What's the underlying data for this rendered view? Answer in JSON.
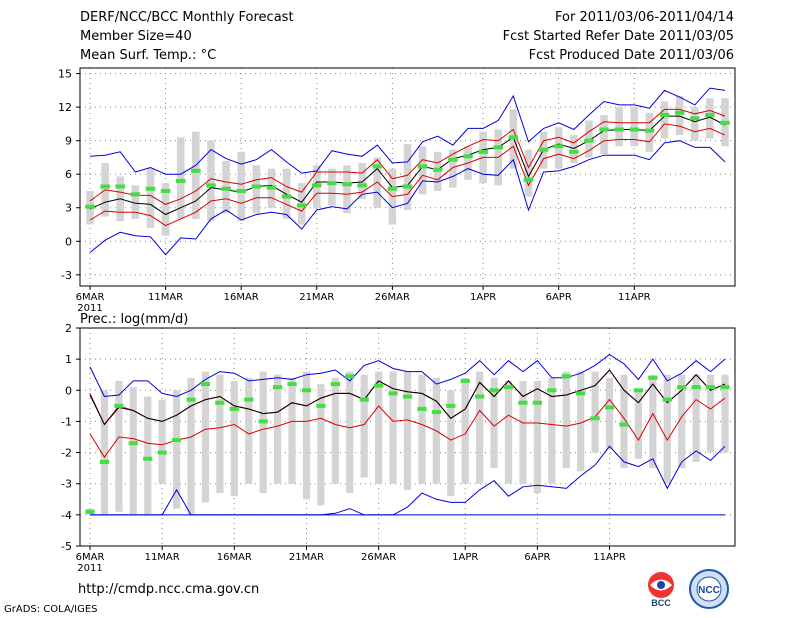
{
  "header": {
    "title": "DERF/NCC/BCC Monthly Forecast",
    "member_size": "Member Size=40",
    "variable": "Mean Surf. Temp.: °C",
    "period": "For 2011/03/06-2011/04/14",
    "started": "Fcst Started Refer Date 2011/03/05",
    "produced": "Fcst Produced Date 2011/03/06"
  },
  "footer": {
    "url": "http://cmdp.ncc.cma.gov.cn",
    "credit": "GrADS: COLA/IGES"
  },
  "logos": {
    "bcc": "BCC",
    "ncc": "NCC"
  },
  "colors": {
    "box": "#d4d4d4",
    "mean": "#000000",
    "bound": "#0000dd",
    "spread": "#dd0000",
    "median": "#44dd44",
    "grid": "#888888"
  },
  "chart_data": [
    {
      "type": "line",
      "title": "Mean Surf. Temp.: °C",
      "x_labels": [
        "6MAR",
        "11MAR",
        "16MAR",
        "21MAR",
        "26MAR",
        "1APR",
        "6APR",
        "11APR"
      ],
      "x_label_days": [
        0,
        5,
        10,
        15,
        20,
        26,
        31,
        36
      ],
      "year_label": "2011",
      "ylim": [
        -4,
        15.5
      ],
      "yticks": [
        -3,
        0,
        3,
        6,
        9,
        12,
        15
      ],
      "series": [
        {
          "name": "max",
          "values": [
            7.6,
            7.7,
            8.0,
            6.2,
            6.6,
            6.0,
            6.0,
            6.8,
            8.2,
            7.4,
            6.9,
            7.3,
            8.2,
            7.1,
            6.1,
            6.3,
            8.1,
            7.8,
            7.6,
            8.6,
            7.0,
            7.1,
            8.9,
            9.4,
            8.6,
            10.1,
            10.1,
            10.8,
            13.0,
            8.9,
            10.1,
            10.6,
            10.0,
            11.3,
            12.5,
            12.2,
            12.2,
            11.9,
            13.5,
            12.9,
            12.2,
            13.7,
            13.5
          ]
        },
        {
          "name": "upper",
          "values": [
            3.6,
            4.6,
            4.4,
            4.1,
            4.1,
            3.3,
            3.8,
            4.5,
            5.6,
            5.3,
            5.1,
            5.5,
            5.7,
            4.9,
            4.4,
            6.2,
            6.2,
            6.2,
            6.1,
            7.3,
            5.6,
            5.9,
            7.3,
            7.0,
            7.8,
            8.5,
            9.1,
            9.0,
            10.0,
            6.6,
            9.0,
            9.3,
            8.8,
            9.8,
            10.7,
            10.6,
            10.6,
            10.6,
            11.8,
            11.8,
            11.4,
            11.7,
            11.2
          ]
        },
        {
          "name": "mean",
          "values": [
            2.9,
            3.5,
            3.8,
            3.4,
            3.3,
            2.4,
            3.0,
            3.6,
            4.8,
            4.6,
            4.4,
            4.9,
            5.0,
            4.2,
            3.5,
            5.3,
            5.3,
            5.2,
            5.3,
            6.5,
            4.8,
            5.0,
            6.7,
            6.4,
            7.4,
            7.7,
            8.2,
            8.4,
            9.3,
            5.8,
            8.2,
            8.7,
            8.3,
            9.0,
            9.9,
            10.0,
            10.0,
            9.9,
            11.2,
            11.2,
            10.7,
            11.1,
            10.4
          ]
        },
        {
          "name": "lower",
          "values": [
            1.9,
            2.7,
            2.6,
            2.6,
            2.3,
            1.4,
            2.0,
            2.6,
            3.6,
            3.8,
            3.4,
            3.9,
            3.9,
            3.3,
            2.7,
            4.3,
            4.3,
            4.2,
            4.4,
            5.3,
            4.0,
            4.2,
            5.9,
            5.5,
            6.6,
            7.0,
            7.5,
            7.5,
            8.5,
            5.0,
            7.4,
            7.8,
            7.4,
            8.1,
            9.0,
            9.1,
            9.1,
            8.9,
            10.5,
            10.3,
            9.8,
            10.1,
            9.5
          ]
        },
        {
          "name": "min",
          "values": [
            -1.0,
            0.1,
            0.8,
            0.5,
            0.4,
            -1.2,
            0.3,
            0.2,
            2.0,
            2.8,
            1.9,
            2.4,
            2.6,
            2.4,
            1.1,
            2.8,
            3.1,
            2.9,
            4.2,
            4.4,
            3.0,
            3.4,
            5.4,
            5.3,
            5.8,
            6.5,
            6.0,
            5.9,
            7.3,
            2.8,
            6.2,
            6.3,
            6.7,
            7.3,
            7.7,
            7.7,
            7.7,
            7.3,
            8.8,
            9.0,
            8.4,
            8.4,
            7.1
          ]
        },
        {
          "name": "median",
          "values": [
            3.1,
            4.9,
            4.9,
            4.2,
            4.7,
            4.5,
            5.4,
            6.3,
            5.0,
            4.7,
            4.5,
            4.9,
            4.8,
            4.0,
            3.2,
            5.0,
            5.2,
            5.1,
            5.0,
            6.7,
            4.7,
            4.9,
            6.7,
            6.4,
            7.3,
            7.6,
            8.0,
            8.4,
            9.3,
            5.5,
            8.2,
            8.5,
            8.0,
            9.0,
            10.0,
            10.0,
            10.0,
            9.9,
            11.3,
            11.5,
            11.0,
            11.3,
            10.6
          ]
        }
      ],
      "boxes": {
        "hi": [
          4.5,
          7.0,
          5.8,
          5.0,
          6.5,
          5.2,
          9.3,
          9.8,
          9.0,
          7.2,
          8.0,
          6.8,
          6.5,
          6.5,
          5.2,
          6.8,
          6.5,
          6.8,
          7.0,
          7.5,
          6.5,
          8.7,
          8.5,
          8.0,
          8.2,
          8.5,
          9.8,
          10.0,
          11.8,
          8.2,
          9.8,
          10.2,
          9.5,
          10.8,
          11.3,
          12.0,
          12.0,
          11.5,
          12.5,
          13.0,
          12.0,
          12.8,
          12.8
        ],
        "lo": [
          1.5,
          2.2,
          1.8,
          2.0,
          1.2,
          0.5,
          2.0,
          2.0,
          1.8,
          2.5,
          1.8,
          2.5,
          3.0,
          2.0,
          1.5,
          3.0,
          3.2,
          2.5,
          3.8,
          3.0,
          1.5,
          2.8,
          4.2,
          4.5,
          4.8,
          5.5,
          5.2,
          5.0,
          6.5,
          4.0,
          6.5,
          6.5,
          7.0,
          7.5,
          7.8,
          8.5,
          8.5,
          8.0,
          9.2,
          9.5,
          9.0,
          9.2,
          8.5
        ]
      }
    },
    {
      "type": "line",
      "title": "Prec.: log(mm/d)",
      "x_labels": [
        "6MAR",
        "11MAR",
        "16MAR",
        "21MAR",
        "26MAR",
        "1APR",
        "6APR",
        "11APR"
      ],
      "x_label_days": [
        0,
        5,
        10,
        15,
        20,
        26,
        31,
        36
      ],
      "year_label": "2011",
      "ylim": [
        -5,
        2
      ],
      "yticks": [
        -5,
        -4,
        -3,
        -2,
        -1,
        0,
        1,
        2
      ],
      "series": [
        {
          "name": "max",
          "values": [
            0.75,
            -0.2,
            -0.15,
            0.3,
            0.3,
            -0.1,
            -0.2,
            0.0,
            0.35,
            0.6,
            0.55,
            0.3,
            0.35,
            0.4,
            0.35,
            0.5,
            0.55,
            0.65,
            0.3,
            0.8,
            0.95,
            0.7,
            0.6,
            0.6,
            0.2,
            0.35,
            0.55,
            0.95,
            0.5,
            0.95,
            0.6,
            0.95,
            0.4,
            0.4,
            0.55,
            0.8,
            1.15,
            0.85,
            0.35,
            1.0,
            0.3,
            0.55,
            0.95,
            0.6,
            1.0
          ]
        },
        {
          "name": "upper",
          "values": [
            -0.1,
            -1.1,
            -0.5,
            -0.65,
            -0.9,
            -1.0,
            -0.8,
            -0.5,
            -0.3,
            -0.2,
            -0.5,
            -0.6,
            -0.75,
            -0.7,
            -0.4,
            -0.5,
            -0.25,
            -0.1,
            -0.1,
            -0.3,
            0.3,
            0.05,
            -0.05,
            -0.1,
            -0.35,
            -0.9,
            -0.6,
            0.25,
            -0.2,
            0.3,
            -0.2,
            0.05,
            -0.2,
            -0.15,
            0.0,
            0.15,
            0.65,
            0.0,
            -0.4,
            0.2,
            -0.4,
            0.0,
            0.5,
            0.0,
            0.2
          ]
        },
        {
          "name": "mean",
          "values": [
            -0.15,
            -1.1,
            -0.55,
            -0.65,
            -0.9,
            -1.0,
            -0.8,
            -0.5,
            -0.3,
            -0.2,
            -0.5,
            -0.6,
            -0.75,
            -0.7,
            -0.4,
            -0.5,
            -0.25,
            -0.1,
            -0.1,
            -0.3,
            0.3,
            0.05,
            -0.05,
            -0.1,
            -0.35,
            -0.9,
            -0.6,
            0.25,
            -0.2,
            0.3,
            -0.2,
            0.05,
            -0.2,
            -0.15,
            0.0,
            0.15,
            0.65,
            0.0,
            -0.4,
            0.2,
            -0.4,
            0.0,
            0.5,
            0.0,
            0.2
          ]
        },
        {
          "name": "lower",
          "values": [
            -1.4,
            -2.15,
            -1.5,
            -1.55,
            -1.7,
            -1.75,
            -1.6,
            -1.5,
            -1.25,
            -1.2,
            -1.1,
            -1.4,
            -1.25,
            -1.15,
            -1.0,
            -1.0,
            -0.9,
            -1.1,
            -1.2,
            -1.1,
            -0.5,
            -1.0,
            -0.95,
            -1.1,
            -1.3,
            -1.6,
            -1.4,
            -0.65,
            -1.15,
            -0.8,
            -1.05,
            -1.05,
            -1.1,
            -1.15,
            -1.05,
            -0.85,
            -0.3,
            -0.9,
            -1.6,
            -0.75,
            -1.6,
            -0.85,
            -0.3,
            -0.6,
            -0.25
          ]
        },
        {
          "name": "min",
          "values": [
            -4.0,
            -4.0,
            -4.0,
            -4.0,
            -4.0,
            -4.0,
            -3.2,
            -4.0,
            -4.0,
            -4.0,
            -4.0,
            -4.0,
            -4.0,
            -4.0,
            -4.0,
            -4.0,
            -4.0,
            -3.95,
            -3.8,
            -4.0,
            -4.0,
            -4.0,
            -3.75,
            -3.3,
            -3.5,
            -3.6,
            -3.6,
            -3.2,
            -2.9,
            -3.4,
            -3.1,
            -3.05,
            -3.1,
            -3.15,
            -2.75,
            -2.4,
            -1.8,
            -2.3,
            -2.45,
            -2.2,
            -3.15,
            -2.3,
            -1.95,
            -2.25,
            -1.8
          ]
        },
        {
          "name": "bottom",
          "values": [
            -4.0,
            -4.0,
            -4.0,
            -4.0,
            -4.0,
            -4.0,
            -4.0,
            -4.0,
            -4.0,
            -4.0,
            -4.0,
            -4.0,
            -4.0,
            -4.0,
            -4.0,
            -4.0,
            -4.0,
            -4.0,
            -4.0,
            -4.0,
            -4.0,
            -4.0,
            -4.0,
            -4.0,
            -4.0,
            -4.0,
            -4.0,
            -4.0,
            -4.0,
            -4.0,
            -4.0,
            -4.0,
            -4.0,
            -4.0,
            -4.0,
            -4.0,
            -4.0,
            -4.0,
            -4.0,
            -4.0,
            -4.0,
            -4.0,
            -4.0,
            -4.0,
            -4.0
          ]
        },
        {
          "name": "median",
          "values": [
            -3.9,
            -2.3,
            -0.5,
            -1.7,
            -2.2,
            -2.0,
            -1.6,
            -0.3,
            0.2,
            -0.4,
            -0.6,
            -0.3,
            -1.0,
            0.1,
            0.2,
            0.0,
            -0.5,
            0.2,
            0.45,
            -0.3,
            0.15,
            -0.1,
            -0.2,
            -0.6,
            -0.7,
            -0.5,
            0.3,
            -0.2,
            0.0,
            0.1,
            -0.4,
            -0.4,
            0.0,
            0.45,
            -0.1,
            -0.9,
            -0.55,
            -1.1,
            0.0,
            0.4,
            -0.3,
            0.1,
            0.1,
            0.1,
            0.1
          ]
        }
      ],
      "boxes": {
        "hi": [
          -3.8,
          0.0,
          0.3,
          0.1,
          -0.2,
          -0.3,
          0.0,
          0.4,
          0.6,
          0.5,
          0.3,
          0.4,
          0.6,
          0.5,
          0.4,
          0.6,
          0.2,
          0.4,
          0.6,
          0.5,
          0.6,
          0.6,
          0.6,
          0.5,
          0.4,
          0.0,
          0.4,
          0.6,
          0.4,
          0.3,
          0.3,
          0.3,
          0.4,
          0.6,
          0.6,
          0.6,
          0.4,
          0.5,
          0.0,
          0.5,
          0.5,
          0.5,
          0.5,
          0.5,
          0.5
        ],
        "lo": [
          -4.0,
          -4.0,
          -3.9,
          -4.0,
          -4.0,
          -3.0,
          -3.8,
          -4.0,
          -3.6,
          -3.3,
          -3.4,
          -3.0,
          -3.3,
          -3.0,
          -3.0,
          -3.5,
          -3.7,
          -3.0,
          -3.3,
          -2.8,
          -3.0,
          -3.0,
          -3.2,
          -3.0,
          -3.0,
          -3.4,
          -3.0,
          -3.0,
          -2.5,
          -3.0,
          -3.0,
          -3.3,
          -3.0,
          -2.5,
          -2.6,
          -2.0,
          -1.9,
          -2.5,
          -2.2,
          -2.5,
          -3.0,
          -2.5,
          -2.3,
          -2.0,
          -2.0
        ]
      }
    }
  ]
}
